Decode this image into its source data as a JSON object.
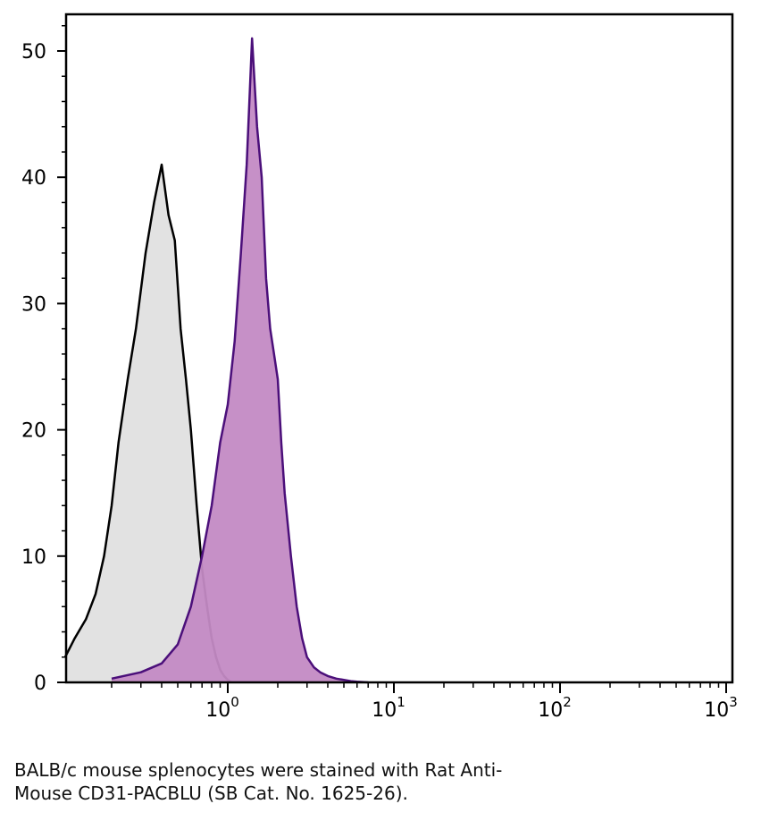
{
  "chart_data": {
    "type": "area",
    "title": "",
    "xlabel": "",
    "ylabel": "",
    "x_scale": "log",
    "xlim": [
      0.1,
      1000
    ],
    "ylim": [
      0,
      52
    ],
    "y_ticks": [
      0,
      10,
      20,
      30,
      40,
      50
    ],
    "x_ticks": [
      {
        "base": "10",
        "exp": "0",
        "value": 1
      },
      {
        "base": "10",
        "exp": "1",
        "value": 10
      },
      {
        "base": "10",
        "exp": "2",
        "value": 100
      },
      {
        "base": "10",
        "exp": "3",
        "value": 1000
      }
    ],
    "grid": false,
    "series": [
      {
        "fill": "#e2e2e2",
        "stroke": "#000000",
        "x": [
          0.105,
          0.12,
          0.14,
          0.16,
          0.18,
          0.2,
          0.22,
          0.25,
          0.28,
          0.32,
          0.36,
          0.4,
          0.44,
          0.48,
          0.52,
          0.56,
          0.6,
          0.65,
          0.7,
          0.75,
          0.8,
          0.85,
          0.9,
          0.95,
          1.0,
          1.05
        ],
        "y": [
          2,
          3.5,
          5,
          7,
          10,
          14,
          19,
          24,
          28,
          34,
          38,
          41,
          37,
          35,
          28,
          24,
          20,
          14,
          9,
          6,
          3.5,
          2,
          1,
          0.5,
          0.2,
          0
        ]
      },
      {
        "fill": "#c38ac4",
        "stroke": "#4b0f7a",
        "x": [
          0.2,
          0.3,
          0.4,
          0.5,
          0.6,
          0.7,
          0.8,
          0.9,
          1.0,
          1.1,
          1.2,
          1.3,
          1.4,
          1.5,
          1.6,
          1.7,
          1.8,
          1.9,
          2.0,
          2.1,
          2.2,
          2.4,
          2.6,
          2.8,
          3.0,
          3.3,
          3.6,
          4.0,
          4.5,
          5.0,
          5.5,
          6.0,
          7.0
        ],
        "y": [
          0.3,
          0.8,
          1.5,
          3,
          6,
          10,
          14,
          19,
          22,
          27,
          34,
          41,
          51,
          44,
          40,
          32,
          28,
          26,
          24,
          19,
          15,
          10,
          6,
          3.5,
          2,
          1.2,
          0.8,
          0.5,
          0.3,
          0.2,
          0.1,
          0.05,
          0
        ]
      }
    ]
  },
  "caption": {
    "line1": "BALB/c mouse splenocytes were stained with Rat Anti-",
    "line2": "Mouse CD31-PACBLU (SB Cat. No. 1625-26)."
  }
}
